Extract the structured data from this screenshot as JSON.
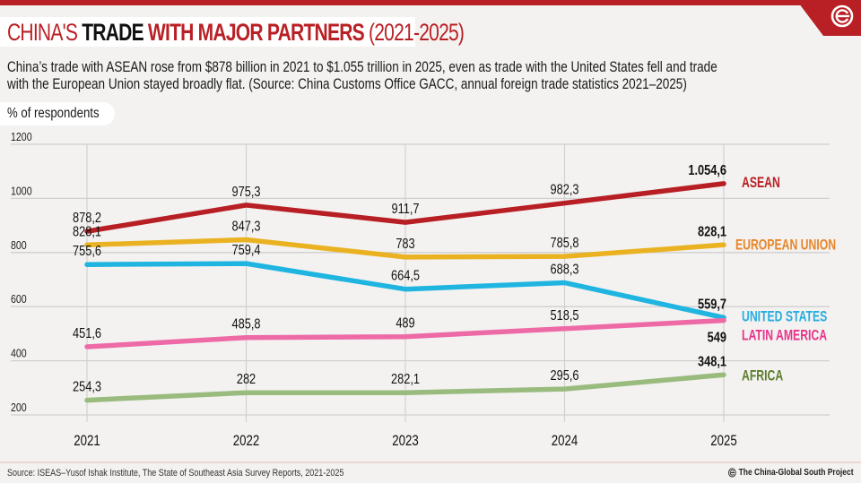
{
  "header": {
    "title_part1": "CHINA'S ",
    "title_part2": "TRADE ",
    "title_part3": "WITH MAJOR PARTNERS ",
    "title_part4": "(2021-2025)",
    "subtitle_line1": "China’s trade with ASEAN rose from $878 billion in 2021 to $1.055 trillion in 2025, even as trade with the United States fell and trade",
    "subtitle_line2": "with the European Union stayed broadly flat. (Source: China Customs Office GACC, annual foreign trade statistics 2021–2025)",
    "unit_label": "% of respondents",
    "logo_icon": "china-global-south-logo"
  },
  "colors": {
    "brand_red": "#b92025",
    "asean": "#b81f24",
    "eu": "#eab221",
    "us": "#1fb5e0",
    "latam": "#ee6aa7",
    "africa": "#99bb7e"
  },
  "chart_data": {
    "type": "line",
    "title": "China's Trade with Major Partners (2021-2025)",
    "xlabel": "",
    "ylabel": "% of respondents",
    "x": [
      "2021",
      "2022",
      "2023",
      "2024",
      "2025"
    ],
    "yticks": [
      200,
      400,
      600,
      800,
      1000,
      1200
    ],
    "ylim": [
      200,
      1200
    ],
    "grid": true,
    "legend": "right-end-labels",
    "series": [
      {
        "name": "ASEAN",
        "color": "#b81f24",
        "label_color": "#b81f24",
        "values": [
          878.2,
          975.3,
          911.7,
          982.3,
          1054.6
        ],
        "labels": [
          "878,2",
          "975,3",
          "911,7",
          "982,3",
          "1.054,6"
        ]
      },
      {
        "name": "EUROPEAN UNION",
        "color": "#eab221",
        "label_color": "#e7862a",
        "values": [
          828.1,
          847.3,
          783,
          785.8,
          828.1
        ],
        "labels": [
          "828,1",
          "847,3",
          "783",
          "785,8",
          "828,1"
        ]
      },
      {
        "name": "UNITED STATES",
        "color": "#1fb5e0",
        "label_color": "#26ade0",
        "values": [
          755.6,
          759.4,
          664.5,
          688.3,
          559.7
        ],
        "labels": [
          "755,6",
          "759,4",
          "664,5",
          "688,3",
          "559,7"
        ]
      },
      {
        "name": "LATIN AMERICA",
        "color": "#ee6aa7",
        "label_color": "#e8338b",
        "values": [
          451.6,
          485.8,
          489,
          518.5,
          549
        ],
        "labels": [
          "451,6",
          "485,8",
          "489",
          "518,5",
          "549"
        ]
      },
      {
        "name": "AFRICA",
        "color": "#99bb7e",
        "label_color": "#5b7d2c",
        "values": [
          254.3,
          282,
          282.1,
          295.6,
          348.1
        ],
        "labels": [
          "254,3",
          "282",
          "282,1",
          "295,6",
          "348,1"
        ]
      }
    ]
  },
  "footer": {
    "source": "Source: ISEAS–Yusof Ishak Institute, The State of Southeast Asia Survey Reports, 2021-2025",
    "brand": "The China-Global South Project"
  }
}
